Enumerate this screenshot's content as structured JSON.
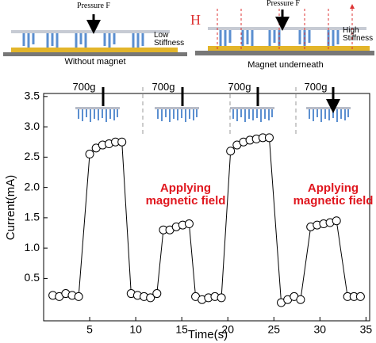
{
  "schematics": [
    {
      "pressure": "Pressure F",
      "stiffness": "Low Stiffness",
      "caption": "Without magnet"
    },
    {
      "field": "H",
      "pressure": "Pressure F",
      "stiffness": "High Stiffness",
      "caption": "Magnet underneath"
    }
  ],
  "chart_data": {
    "type": "line",
    "x_label": "Time(s)",
    "y_label": "Current(mA)",
    "x": [
      1,
      1.7,
      2.4,
      3.1,
      3.8,
      5,
      5.7,
      6.4,
      7.1,
      7.8,
      8.5,
      9.5,
      10.2,
      10.9,
      11.6,
      12.3,
      13,
      13.7,
      14.4,
      15.1,
      15.8,
      16.5,
      17.2,
      17.9,
      18.6,
      19.3,
      20.3,
      21,
      21.7,
      22.4,
      23.1,
      23.8,
      24.5,
      25.8,
      26.5,
      27.2,
      27.9,
      29,
      29.7,
      30.4,
      31.1,
      31.8,
      33,
      33.7,
      34.4
    ],
    "series": [
      {
        "color": "#000000",
        "values": [
          0.22,
          0.2,
          0.25,
          0.22,
          0.2,
          2.55,
          2.65,
          2.7,
          2.72,
          2.75,
          2.75,
          0.25,
          0.22,
          0.2,
          0.18,
          0.25,
          1.3,
          1.3,
          1.35,
          1.38,
          1.4,
          0.2,
          0.15,
          0.18,
          0.2,
          0.18,
          2.6,
          2.7,
          2.75,
          2.78,
          2.8,
          2.82,
          2.82,
          0.1,
          0.15,
          0.2,
          0.15,
          1.35,
          1.38,
          1.4,
          1.42,
          1.45,
          0.2,
          0.2,
          0.2
        ]
      }
    ],
    "xlim": [
      0,
      35.4
    ],
    "ylim": [
      -0.2,
      3.55
    ],
    "xticks": [
      5,
      10,
      15,
      20,
      25,
      30,
      35
    ],
    "yticks": [
      0.5,
      {
        "value": 1,
        "label": "1.0"
      },
      1.5,
      {
        "value": 2,
        "label": "2.0"
      },
      2.5,
      {
        "value": 3,
        "label": "3.0"
      },
      3.5
    ],
    "loads": [
      "700g",
      "700g",
      "700g",
      "700g"
    ],
    "annotations": [
      "Applying magnetic field",
      "Applying magnetic field"
    ]
  }
}
